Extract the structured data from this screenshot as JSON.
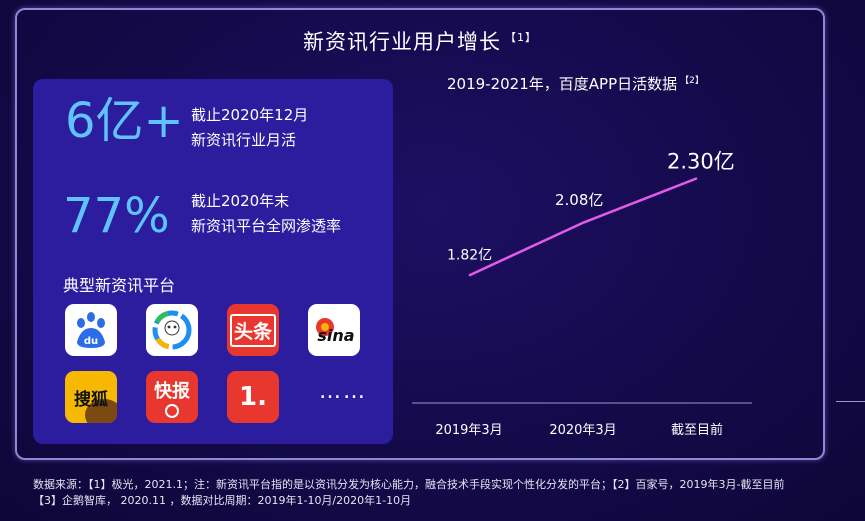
{
  "title": "新资讯行业用户增长",
  "title_ref": "【1】",
  "stats": [
    {
      "value": "6亿+",
      "line1": "截止2020年12月",
      "line2": "新资讯行业月活"
    },
    {
      "value": "77%",
      "line1": "截止2020年末",
      "line2": "新资讯平台全网渗透率"
    }
  ],
  "platforms_label": "典型新资讯平台",
  "apps": [
    {
      "name": "baidu-app-icon",
      "glyph": "du"
    },
    {
      "name": "tencent-news-app-icon",
      "glyph": ""
    },
    {
      "name": "toutiao-app-icon",
      "glyph": "头条"
    },
    {
      "name": "sina-app-icon",
      "glyph": "sina"
    },
    {
      "name": "sohu-app-icon",
      "glyph": "搜狐"
    },
    {
      "name": "kuaibao-app-icon",
      "glyph": "快报"
    },
    {
      "name": "yidian-app-icon",
      "glyph": "1."
    }
  ],
  "more": "……",
  "chart_title": "2019-2021年，百度APP日活数据",
  "chart_title_ref": "【2】",
  "chart_data": {
    "type": "line",
    "categories": [
      "2019年3月",
      "2020年3月",
      "截至目前"
    ],
    "series": [
      {
        "values": [
          1.82,
          2.08,
          2.3
        ]
      }
    ],
    "data_labels": [
      "1.82亿",
      "2.08亿",
      "2.30亿"
    ],
    "ylim": [
      1.6,
      2.4
    ],
    "line_color": "#e35be8",
    "grid": false
  },
  "footnote_line1": "数据来源：【1】极光，2021.1；注：新资讯平台指的是以资讯分发为核心能力，融合技术手段实现个性化分发的平台；【2】百家号，2019年3月-截至目前",
  "footnote_line2": "【3】企鹅智库， 2020.11 ，数据对比周期：2019年1-10月/2020年1-10月",
  "colors": {
    "accent_blue": "#5fc3ff",
    "panel": "#2c1c9e",
    "line": "#e35be8"
  }
}
